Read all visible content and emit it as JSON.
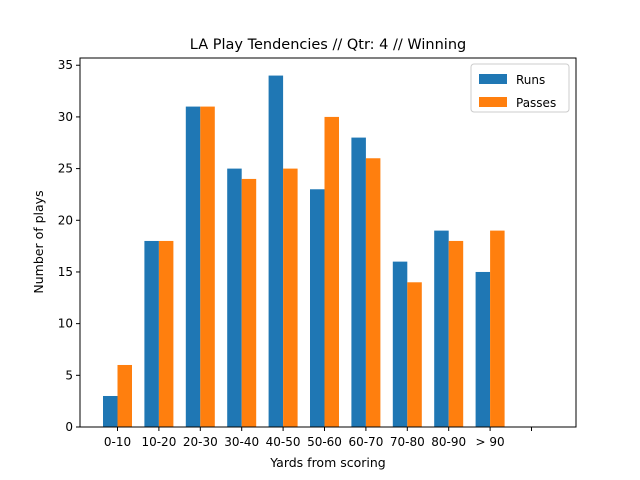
{
  "chart_data": {
    "type": "bar",
    "title": "LA Play Tendencies // Qtr: 4 // Winning",
    "xlabel": "Yards from scoring",
    "ylabel": "Number of plays",
    "categories": [
      "0-10",
      "10-20",
      "20-30",
      "30-40",
      "40-50",
      "50-60",
      "60-70",
      "70-80",
      "80-90",
      "> 90",
      ""
    ],
    "series": [
      {
        "name": "Runs",
        "color": "#1f77b4",
        "values": [
          3,
          18,
          31,
          25,
          34,
          23,
          28,
          16,
          19,
          15,
          0
        ]
      },
      {
        "name": "Passes",
        "color": "#ff7f0e",
        "values": [
          6,
          18,
          31,
          24,
          25,
          30,
          26,
          14,
          18,
          19,
          0
        ]
      }
    ],
    "ylim": [
      0,
      35.7
    ],
    "yticks": [
      0,
      5,
      10,
      15,
      20,
      25,
      30,
      35
    ],
    "grid": false,
    "legend_position": "top-right"
  }
}
